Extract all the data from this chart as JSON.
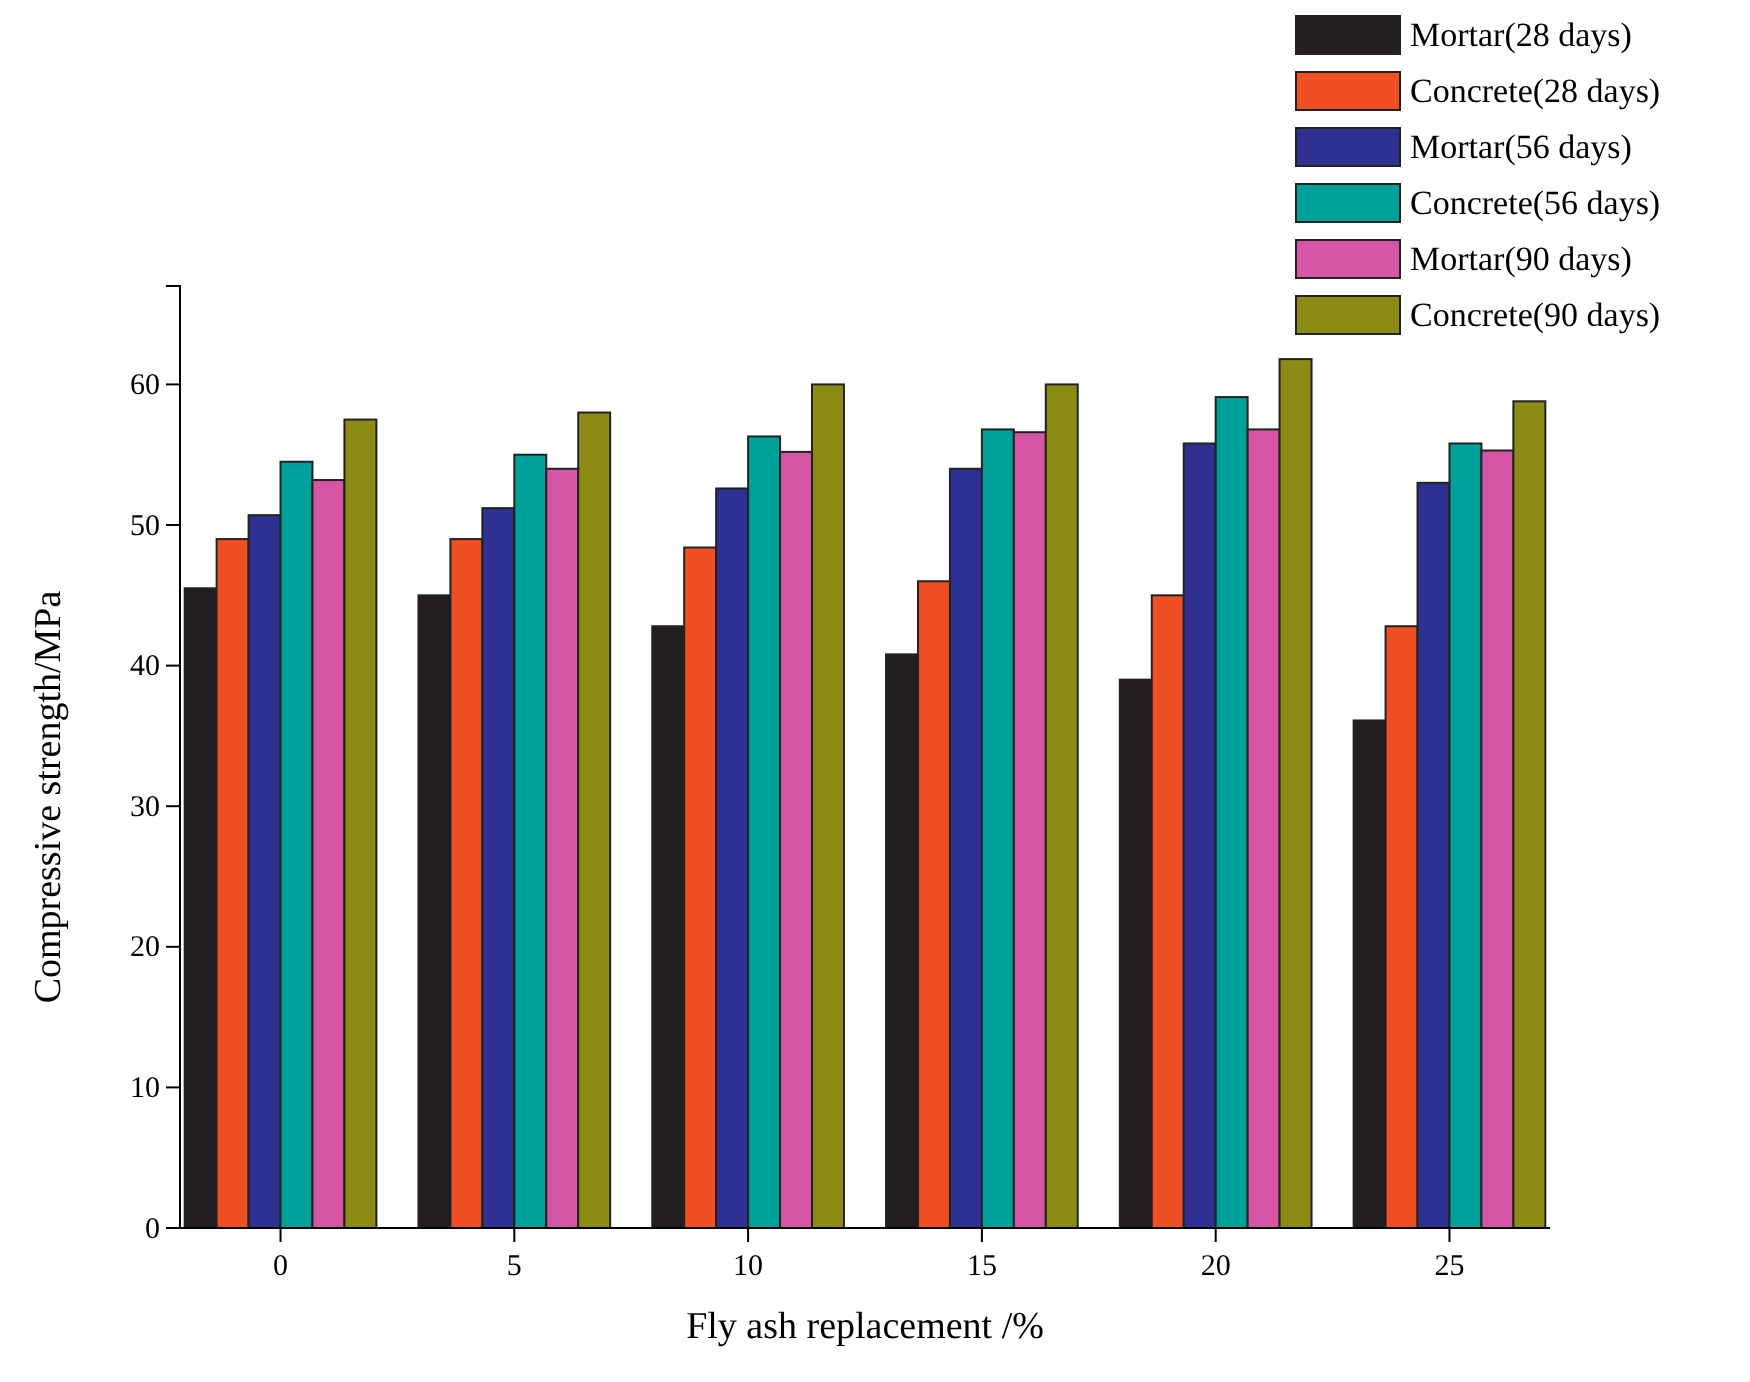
{
  "chart_data": {
    "type": "bar",
    "xlabel": "Fly ash replacement /%",
    "ylabel": "Compressive strength/MPa",
    "categories": [
      "0",
      "5",
      "10",
      "15",
      "20",
      "25"
    ],
    "series": [
      {
        "name": "Mortar(28 days)",
        "color": "#231f20",
        "values": [
          45.5,
          45,
          42.8,
          40.8,
          39,
          36.1
        ]
      },
      {
        "name": "Concrete(28 days)",
        "color": "#f04e23",
        "values": [
          49,
          49,
          48.4,
          46,
          45,
          42.8
        ]
      },
      {
        "name": "Mortar(56 days)",
        "color": "#2e3192",
        "values": [
          50.7,
          51.2,
          52.6,
          54,
          55.8,
          53
        ]
      },
      {
        "name": "Concrete(56 days)",
        "color": "#00a19a",
        "values": [
          54.5,
          55,
          56.3,
          56.8,
          59.1,
          55.8
        ]
      },
      {
        "name": "Mortar(90 days)",
        "color": "#d355a3",
        "values": [
          53.2,
          54,
          55.2,
          56.6,
          56.8,
          55.3
        ]
      },
      {
        "name": "Concrete(90 days)",
        "color": "#8c8c14",
        "values": [
          57.5,
          58,
          60,
          60,
          61.8,
          58.8
        ]
      }
    ],
    "ylim": [
      0,
      67
    ],
    "yticks": [
      0,
      10,
      20,
      30,
      40,
      50,
      60
    ],
    "grid": false,
    "legend": "top right"
  }
}
